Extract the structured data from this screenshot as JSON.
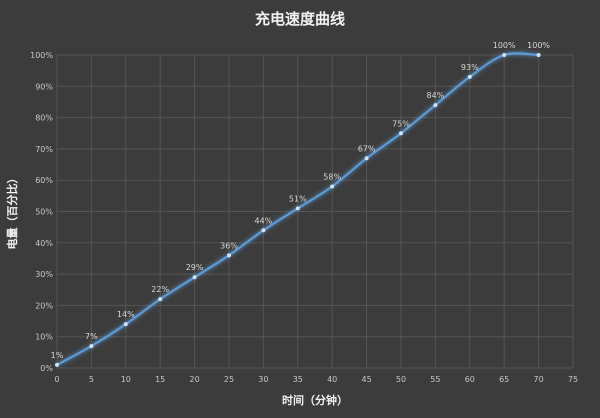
{
  "chart_data": {
    "type": "line",
    "title": "充电速度曲线",
    "xlabel": "时间（分钟）",
    "ylabel": "电量（百分比）",
    "xlim": [
      0,
      75
    ],
    "ylim": [
      0,
      100
    ],
    "x_ticks": [
      "0",
      "5",
      "10",
      "15",
      "20",
      "25",
      "30",
      "35",
      "40",
      "45",
      "50",
      "55",
      "60",
      "65",
      "70",
      "75"
    ],
    "y_ticks": [
      "0%",
      "10%",
      "20%",
      "30%",
      "40%",
      "50%",
      "60%",
      "70%",
      "80%",
      "90%",
      "100%"
    ],
    "grid": true,
    "legend": "none",
    "series": [
      {
        "x": [
          0,
          5,
          10,
          15,
          20,
          25,
          30,
          35,
          40,
          45,
          50,
          55,
          60,
          65,
          70
        ],
        "values": [
          1,
          7,
          14,
          22,
          29,
          36,
          44,
          51,
          58,
          67,
          75,
          84,
          93,
          100,
          100
        ],
        "labels": [
          "1%",
          "7%",
          "14%",
          "22%",
          "29%",
          "36%",
          "44%",
          "51%",
          "58%",
          "67%",
          "75%",
          "84%",
          "93%",
          "100%",
          "100%"
        ]
      }
    ],
    "colors": {
      "line": "#5b9bd5",
      "background": "#3c3c3c",
      "grid": "#555555"
    }
  }
}
